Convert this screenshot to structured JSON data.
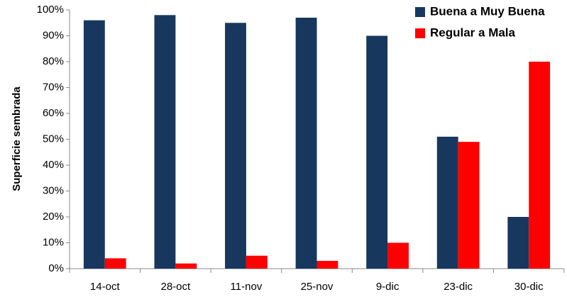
{
  "chart_data": {
    "type": "bar",
    "y_label": "Superficie sembrada",
    "categories": [
      "14-oct",
      "28-oct",
      "11-nov",
      "25-nov",
      "9-dic",
      "23-dic",
      "30-dic"
    ],
    "series": [
      {
        "name": "Buena a Muy Buena",
        "color": "#17375e",
        "values": [
          96,
          98,
          95,
          97,
          90,
          51,
          20
        ]
      },
      {
        "name": "Regular a Mala",
        "color": "#ff0000",
        "values": [
          4,
          2,
          5,
          3,
          10,
          49,
          80
        ]
      }
    ],
    "ylim": [
      0,
      100
    ],
    "yticks": [
      {
        "value": 0,
        "label": "0%"
      },
      {
        "value": 10,
        "label": "10%"
      },
      {
        "value": 20,
        "label": "20%"
      },
      {
        "value": 30,
        "label": "30%"
      },
      {
        "value": 40,
        "label": "40%"
      },
      {
        "value": 50,
        "label": "50%"
      },
      {
        "value": 60,
        "label": "60%"
      },
      {
        "value": 70,
        "label": "70%"
      },
      {
        "value": 80,
        "label": "80%"
      },
      {
        "value": 90,
        "label": "90%"
      },
      {
        "value": 100,
        "label": "100%"
      }
    ],
    "grid": false,
    "legend_position": "upper right"
  }
}
